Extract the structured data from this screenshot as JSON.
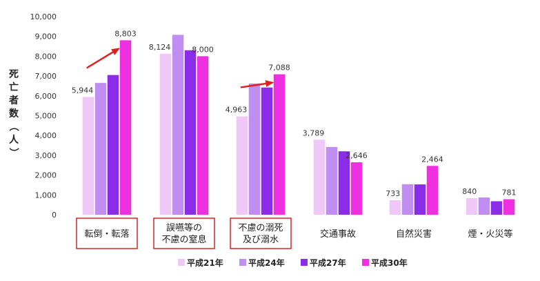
{
  "chart_data": {
    "type": "bar",
    "ylabel": "死亡者数（人）",
    "ylim": [
      0,
      10000
    ],
    "yticks": [
      "0",
      "1,000",
      "2,000",
      "3,000",
      "4,000",
      "5,000",
      "6,000",
      "7,000",
      "8,000",
      "9,000",
      "10,000"
    ],
    "categories": [
      [
        "転倒・転落"
      ],
      [
        "誤嚥等の",
        "不慮の窒息"
      ],
      [
        "不慮の溺死",
        "及び溺水"
      ],
      [
        "交通事故"
      ],
      [
        "自然災害"
      ],
      [
        "煙・火災等"
      ]
    ],
    "series": [
      {
        "name": "平成21年",
        "color": "#f0c8f8",
        "values": [
          5944,
          8124,
          4963,
          3789,
          733,
          840
        ]
      },
      {
        "name": "平成24年",
        "color": "#c08ef0",
        "values": [
          6650,
          9080,
          6620,
          3420,
          1540,
          870
        ]
      },
      {
        "name": "平成27年",
        "color": "#8a2ce8",
        "values": [
          7050,
          8300,
          6420,
          3200,
          1530,
          680
        ]
      },
      {
        "name": "平成30年",
        "color": "#f030e0",
        "values": [
          8803,
          8000,
          7088,
          2646,
          2464,
          781
        ]
      }
    ],
    "data_labels": [
      {
        "category": 0,
        "series": 0,
        "text": "5,944"
      },
      {
        "category": 0,
        "series": 3,
        "text": "8,803"
      },
      {
        "category": 1,
        "series": 0,
        "text": "8,124"
      },
      {
        "category": 1,
        "series": 3,
        "text": "8,000"
      },
      {
        "category": 2,
        "series": 0,
        "text": "4,963"
      },
      {
        "category": 2,
        "series": 3,
        "text": "7,088"
      },
      {
        "category": 3,
        "series": 0,
        "text": "3,789"
      },
      {
        "category": 3,
        "series": 3,
        "text": "2,646"
      },
      {
        "category": 4,
        "series": 0,
        "text": "733"
      },
      {
        "category": 4,
        "series": 3,
        "text": "2,464"
      },
      {
        "category": 5,
        "series": 0,
        "text": "840"
      },
      {
        "category": 5,
        "series": 3,
        "text": "781"
      }
    ],
    "highlighted_categories": [
      0,
      1,
      2
    ],
    "trend_arrows": [
      0,
      2
    ],
    "highlight_color": "#e02020",
    "grid": false,
    "legend": "bottom"
  }
}
